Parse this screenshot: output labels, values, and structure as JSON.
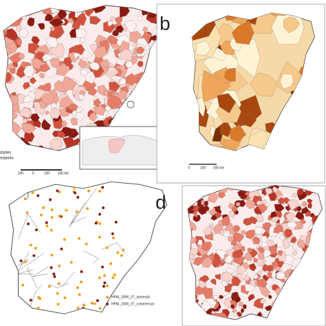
{
  "panel_a": {
    "legend": [
      "daries",
      "ndaries"
    ],
    "scale_labels": [
      "100",
      "0",
      "100",
      "200 km"
    ]
  },
  "panel_b": {
    "label": "b",
    "scale_labels": [
      "0",
      "100",
      "200 km"
    ]
  },
  "panel_c": {
    "legend": [
      "HPAI_2006_07_domestic",
      "HPAI_2006_07_commercial"
    ]
  },
  "panel_d": {
    "label": "d"
  }
}
